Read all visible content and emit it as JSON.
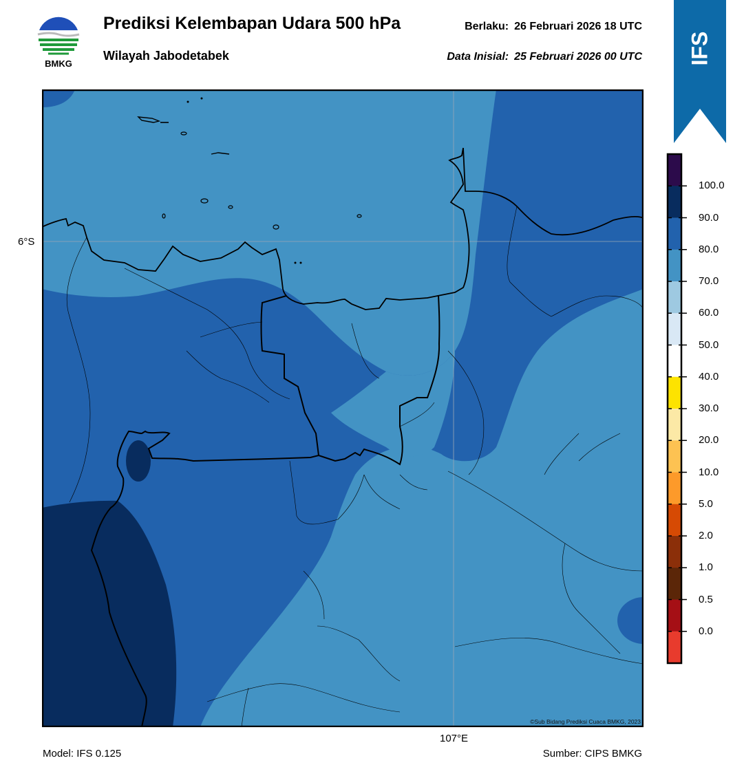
{
  "header": {
    "title": "Prediksi Kelembapan Udara 500 hPa",
    "subtitle": "Wilayah Jabodetabek",
    "valid_label": "Berlaku:",
    "valid_value": "26 Februari 2026 18 UTC",
    "init_label": "Data Inisial:",
    "init_value": "25 Februari 2026 00 UTC"
  },
  "logo": {
    "text": "BMKG",
    "icon": "bmkg-logo"
  },
  "ribbon": {
    "text": "IFS",
    "color": "#0d6aa8"
  },
  "map": {
    "lat_label": "6°S",
    "lon_label": "107°E",
    "copyright": "©Sub Bidang Prediksi Cuaca BMKG, 2023"
  },
  "footer": {
    "model": "Model: IFS 0.125",
    "source": "Sumber: CIPS BMKG"
  },
  "colorbar": {
    "ticks": [
      "100.0",
      "90.0",
      "80.0",
      "70.0",
      "60.0",
      "50.0",
      "40.0",
      "30.0",
      "20.0",
      "10.0",
      "5.0",
      "2.0",
      "1.0",
      "0.5",
      "0.0"
    ],
    "colors_top_to_bottom": [
      "#2c0b4b",
      "#082c5e",
      "#2262ad",
      "#4393c4",
      "#9ec9e1",
      "#d9e8f5",
      "#ffffff",
      "#fde300",
      "#fce9a6",
      "#fdc252",
      "#fd9a2a",
      "#d64a04",
      "#8b2f09",
      "#5b2608",
      "#a50f15",
      "#e83b2d"
    ]
  }
}
